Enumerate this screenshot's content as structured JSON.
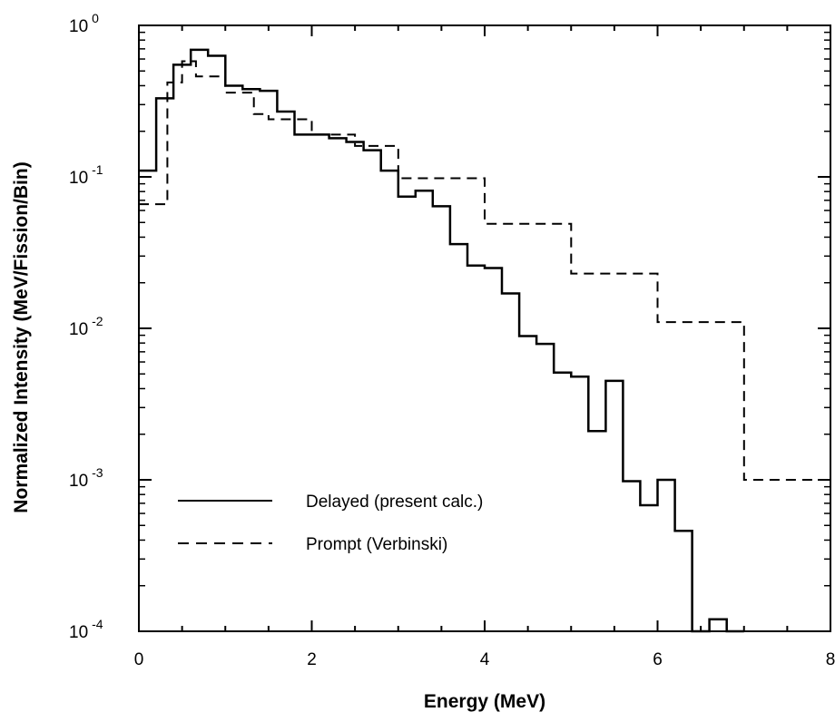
{
  "chart_data": {
    "type": "line",
    "step": true,
    "xlabel": "Energy (MeV)",
    "ylabel": "Normalized Intensity (MeV/Fission/Bin)",
    "xlim": [
      0,
      8
    ],
    "ylim": [
      0.0001,
      1
    ],
    "yscale": "log",
    "x_ticks": [
      "0",
      "2",
      "4",
      "6",
      "8"
    ],
    "y_ticks": [
      {
        "base": "10",
        "exp": "0"
      },
      {
        "base": "10",
        "exp": "-1"
      },
      {
        "base": "10",
        "exp": "-2"
      },
      {
        "base": "10",
        "exp": "-3"
      },
      {
        "base": "10",
        "exp": "-4"
      }
    ],
    "legend_position": "lower-left",
    "series": [
      {
        "name": "Delayed (present calc.)",
        "style": "solid",
        "bin_edges": [
          0,
          0.2,
          0.4,
          0.6,
          0.8,
          1.0,
          1.2,
          1.4,
          1.6,
          1.8,
          2.0,
          2.2,
          2.4,
          2.6,
          2.8,
          3.0,
          3.2,
          3.4,
          3.6,
          3.8,
          4.0,
          4.2,
          4.4,
          4.6,
          4.8,
          5.0,
          5.2,
          5.4,
          5.6,
          5.8,
          6.0,
          6.2,
          6.4,
          6.6,
          6.8,
          7.0
        ],
        "values": [
          0.11,
          0.33,
          0.55,
          0.69,
          0.63,
          0.4,
          0.38,
          0.37,
          0.27,
          0.19,
          0.19,
          0.18,
          0.17,
          0.15,
          0.11,
          0.074,
          0.081,
          0.064,
          0.036,
          0.026,
          0.025,
          0.017,
          0.0089,
          0.0079,
          0.0051,
          0.0048,
          0.0021,
          0.0045,
          0.00098,
          0.00068,
          0.001,
          0.00046,
          0.0001,
          0.00012,
          0.0001
        ]
      },
      {
        "name": "Prompt (Verbinski)",
        "style": "dashed",
        "bin_edges": [
          0,
          0.33,
          0.5,
          0.66,
          1.0,
          1.33,
          1.5,
          2.0,
          2.5,
          3.0,
          4.0,
          5.0,
          6.0,
          7.0,
          8.0
        ],
        "values": [
          0.066,
          0.42,
          0.58,
          0.46,
          0.36,
          0.26,
          0.24,
          0.19,
          0.16,
          0.098,
          0.049,
          0.023,
          0.011,
          0.001
        ]
      }
    ]
  }
}
